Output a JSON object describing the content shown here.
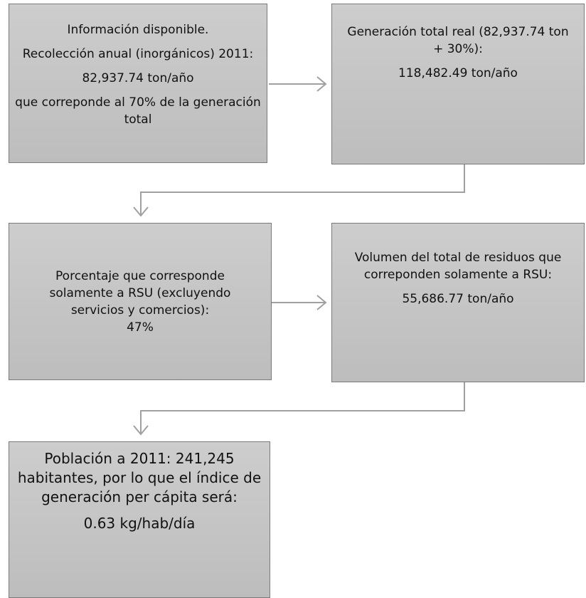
{
  "nodes": [
    {
      "paragraphs": [
        "Información disponible.",
        "Recolección anual (inorgánicos) 2011:",
        "82,937.74 ton/año",
        "que correponde al 70% de la generación total"
      ]
    },
    {
      "paragraphs": [
        "Generación total real (82,937.74 ton + 30%):",
        "118,482.49 ton/año"
      ]
    },
    {
      "paragraphs": [
        "Porcentaje que corresponde solamente a RSU (excluyendo servicios y comercios):",
        "47%"
      ]
    },
    {
      "paragraphs": [
        "Volumen del total de residuos que correponden solamente a RSU:",
        "55,686.77 ton/año"
      ]
    },
    {
      "paragraphs": [
        "Población a 2011: 241,245 habitantes, por lo que el índice de generación per cápita será:",
        "0.63 kg/hab/día"
      ]
    }
  ]
}
